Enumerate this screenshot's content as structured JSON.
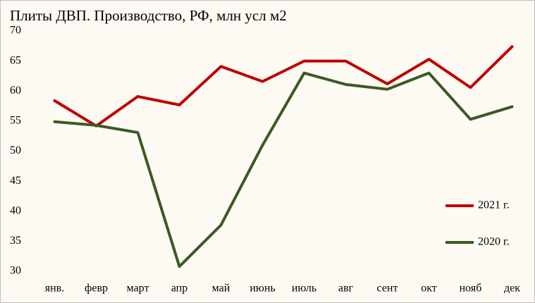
{
  "chart_data": {
    "type": "line",
    "title": "Плиты ДВП. Производство, РФ, млн усл м2",
    "categories": [
      "янв.",
      "февр",
      "март",
      "апр",
      "май",
      "июнь",
      "июль",
      "авг",
      "сент",
      "окт",
      "нояб",
      "дек"
    ],
    "series": [
      {
        "name": "2021 г.",
        "color": "#c00000",
        "values": [
          58.4,
          54.2,
          59.1,
          57.7,
          64.1,
          61.6,
          65.0,
          65.0,
          61.2,
          65.3,
          60.6,
          67.4
        ]
      },
      {
        "name": "2020 г.",
        "color": "#3b5a24",
        "values": [
          54.9,
          54.3,
          53.1,
          30.8,
          37.7,
          51.0,
          63.0,
          61.1,
          60.3,
          63.0,
          55.3,
          57.4
        ]
      }
    ],
    "ylim": [
      30,
      70
    ],
    "yticks": [
      30,
      35,
      40,
      45,
      50,
      55,
      60,
      65,
      70
    ],
    "grid": false,
    "legend": "right"
  }
}
